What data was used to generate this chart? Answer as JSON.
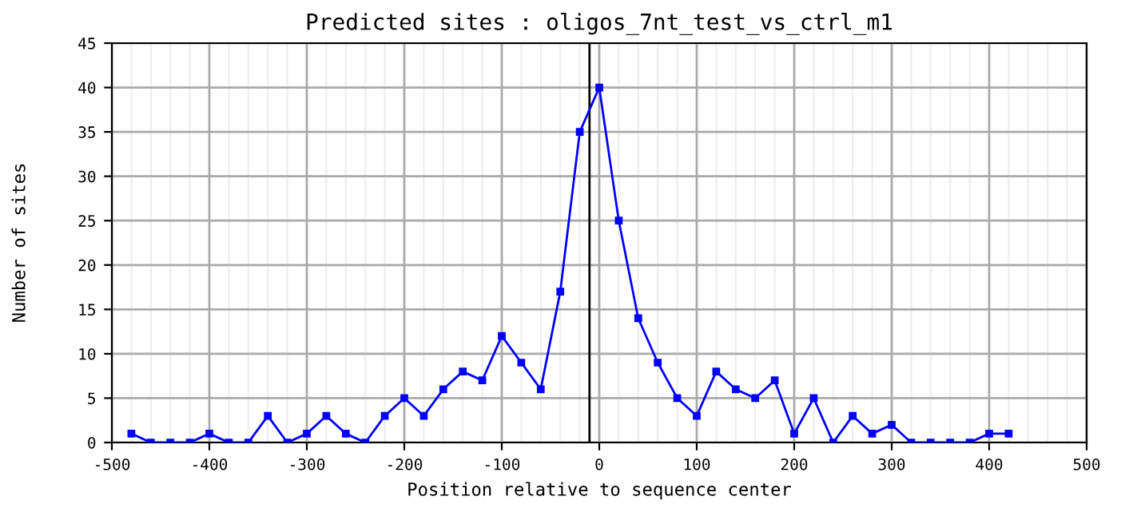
{
  "chart_data": {
    "type": "line",
    "title": "Predicted sites : oligos_7nt_test_vs_ctrl_m1",
    "xlabel": "Position relative to sequence center",
    "ylabel": "Number of sites",
    "x": [
      -480,
      -460,
      -440,
      -420,
      -400,
      -380,
      -360,
      -340,
      -320,
      -300,
      -280,
      -260,
      -240,
      -220,
      -200,
      -180,
      -160,
      -140,
      -120,
      -100,
      -80,
      -60,
      -40,
      -20,
      0,
      20,
      40,
      60,
      80,
      100,
      120,
      140,
      160,
      180,
      200,
      220,
      240,
      260,
      280,
      300,
      320,
      340,
      360,
      380,
      400,
      420
    ],
    "series": [
      {
        "color": "#0000ff",
        "values": [
          1,
          0,
          0,
          0,
          1,
          0,
          0,
          3,
          0,
          1,
          3,
          1,
          0,
          3,
          5,
          3,
          6,
          8,
          7,
          12,
          9,
          6,
          17,
          35,
          40,
          25,
          14,
          9,
          5,
          3,
          8,
          6,
          5,
          7,
          1,
          5,
          0,
          3,
          1,
          2,
          0,
          0,
          0,
          0,
          1,
          1
        ]
      }
    ],
    "xlim": [
      -500,
      500
    ],
    "xticks": [
      -500,
      -400,
      -300,
      -200,
      -100,
      0,
      100,
      200,
      300,
      400,
      500
    ],
    "ylim": [
      0,
      45
    ],
    "yticks": [
      0,
      5,
      10,
      15,
      20,
      25,
      30,
      35,
      40,
      45
    ],
    "ref_lines": [
      {
        "axis": "x",
        "value": -10,
        "color": "#000000"
      }
    ],
    "grid": true,
    "marker": "square",
    "line_style": "solid",
    "legend": false
  }
}
